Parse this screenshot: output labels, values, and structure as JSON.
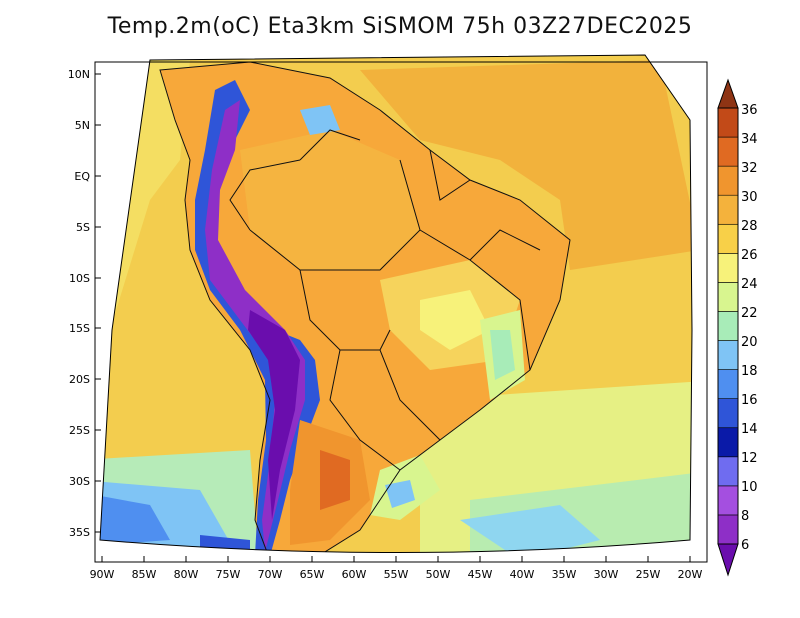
{
  "title": "Temp.2m(oC) Eta3km SiSMOM 75h 03Z27DEC2025",
  "lat_labels": [
    "10N",
    "5N",
    "EQ",
    "5S",
    "10S",
    "15S",
    "20S",
    "25S",
    "30S",
    "35S"
  ],
  "lon_labels": [
    "90W",
    "85W",
    "80W",
    "75W",
    "70W",
    "65W",
    "60W",
    "55W",
    "50W",
    "45W",
    "40W",
    "35W",
    "30W",
    "25W",
    "20W"
  ],
  "colorbar": {
    "labels": [
      "6",
      "8",
      "10",
      "12",
      "14",
      "16",
      "18",
      "20",
      "22",
      "24",
      "26",
      "28",
      "30",
      "32",
      "34",
      "36"
    ],
    "colors": [
      "#6a0dad",
      "#8e2fc7",
      "#a44fe0",
      "#6f6cf0",
      "#0a1aa8",
      "#2f55d8",
      "#4f8ff0",
      "#7fc4f5",
      "#a8ecb8",
      "#d8f58f",
      "#f7f27a",
      "#f8d048",
      "#f4b23c",
      "#f0952e",
      "#e06a22",
      "#c24a18",
      "#8e3414"
    ]
  }
}
